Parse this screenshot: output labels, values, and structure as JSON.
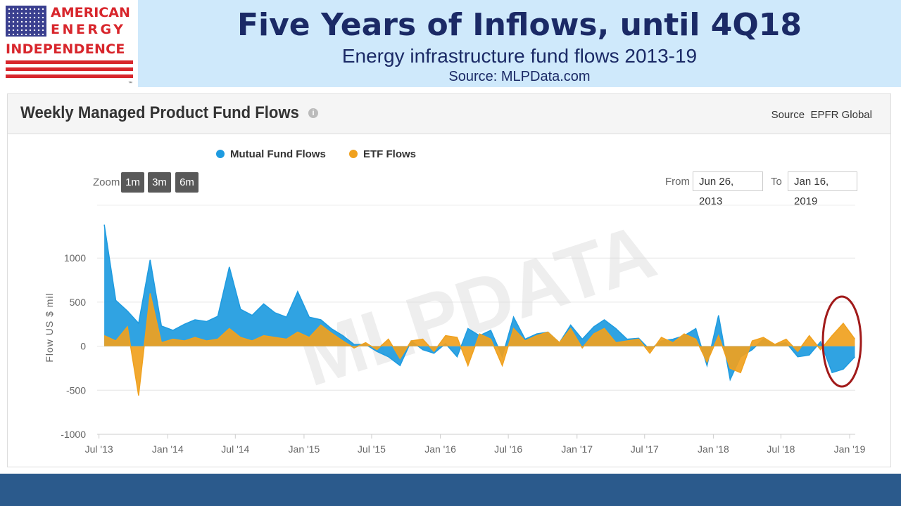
{
  "logo": {
    "line1": "AMERICAN",
    "line2": "ENERGY",
    "line3": "INDEPENDENCE",
    "tm": "™"
  },
  "slide": {
    "title": "Five Years of Inflows, until 4Q18",
    "subtitle": "Energy infrastructure fund flows 2013-19",
    "source": "Source: MLPData.com"
  },
  "panel": {
    "title": "Weekly Managed Product Fund Flows",
    "source_label": "Source",
    "source_value": "EPFR Global",
    "info_icon": "info-icon"
  },
  "controls": {
    "zoom_label": "Zoom",
    "zoom_buttons": [
      "1m",
      "3m",
      "6m"
    ],
    "from_label": "From",
    "from_value": "Jun 26, 2013",
    "to_label": "To",
    "to_value": "Jan 16, 2019"
  },
  "watermark": "MLPDATA",
  "colors": {
    "mutual": "#1e9be0",
    "etf": "#f0a11e",
    "highlight": "#a11a1a",
    "title": "#1b2a66",
    "footer": "#2b5a8c"
  },
  "chart_data": {
    "type": "area",
    "ylabel": "Flow US $ mil",
    "xlabel": "",
    "ylim": [
      -1000,
      1600
    ],
    "yticks": [
      1000,
      500,
      0,
      -500,
      -1000
    ],
    "xticks": [
      "Jul '13",
      "Jan '14",
      "Jul '14",
      "Jan '15",
      "Jul '15",
      "Jan '16",
      "Jul '16",
      "Jan '17",
      "Jul '17",
      "Jan '18",
      "Jul '18",
      "Jan '19"
    ],
    "xrange": [
      "2013-06-26",
      "2019-01-16"
    ],
    "grid": true,
    "legend": "top",
    "annotation": "circle around Q4 2018 to Jan 2019",
    "series": [
      {
        "name": "Mutual Fund Flows",
        "x": [
          "2013-07",
          "2013-08",
          "2013-09",
          "2013-10",
          "2013-11",
          "2013-12",
          "2014-01",
          "2014-02",
          "2014-03",
          "2014-04",
          "2014-05",
          "2014-06",
          "2014-07",
          "2014-08",
          "2014-09",
          "2014-10",
          "2014-11",
          "2014-12",
          "2015-01",
          "2015-02",
          "2015-03",
          "2015-04",
          "2015-05",
          "2015-06",
          "2015-07",
          "2015-08",
          "2015-09",
          "2015-10",
          "2015-11",
          "2015-12",
          "2016-01",
          "2016-02",
          "2016-03",
          "2016-04",
          "2016-05",
          "2016-06",
          "2016-07",
          "2016-08",
          "2016-09",
          "2016-10",
          "2016-11",
          "2016-12",
          "2017-01",
          "2017-02",
          "2017-03",
          "2017-04",
          "2017-05",
          "2017-06",
          "2017-07",
          "2017-08",
          "2017-09",
          "2017-10",
          "2017-11",
          "2017-12",
          "2018-01",
          "2018-02",
          "2018-03",
          "2018-04",
          "2018-05",
          "2018-06",
          "2018-07",
          "2018-08",
          "2018-09",
          "2018-10",
          "2018-11",
          "2018-12",
          "2019-01"
        ],
        "values": [
          1380,
          520,
          400,
          260,
          980,
          230,
          180,
          250,
          300,
          280,
          340,
          900,
          420,
          350,
          480,
          380,
          330,
          620,
          330,
          300,
          200,
          120,
          20,
          20,
          -60,
          -120,
          -220,
          60,
          -40,
          -80,
          30,
          -120,
          200,
          120,
          180,
          -120,
          330,
          80,
          140,
          160,
          40,
          240,
          80,
          220,
          300,
          200,
          80,
          90,
          -40,
          60,
          80,
          120,
          200,
          -220,
          350,
          -380,
          -120,
          -40,
          80,
          20,
          40,
          -120,
          -100,
          50,
          -300,
          -260,
          -120
        ]
      },
      {
        "name": "ETF Flows",
        "x": [
          "2013-07",
          "2013-08",
          "2013-09",
          "2013-10",
          "2013-11",
          "2013-12",
          "2014-01",
          "2014-02",
          "2014-03",
          "2014-04",
          "2014-05",
          "2014-06",
          "2014-07",
          "2014-08",
          "2014-09",
          "2014-10",
          "2014-11",
          "2014-12",
          "2015-01",
          "2015-02",
          "2015-03",
          "2015-04",
          "2015-05",
          "2015-06",
          "2015-07",
          "2015-08",
          "2015-09",
          "2015-10",
          "2015-11",
          "2015-12",
          "2016-01",
          "2016-02",
          "2016-03",
          "2016-04",
          "2016-05",
          "2016-06",
          "2016-07",
          "2016-08",
          "2016-09",
          "2016-10",
          "2016-11",
          "2016-12",
          "2017-01",
          "2017-02",
          "2017-03",
          "2017-04",
          "2017-05",
          "2017-06",
          "2017-07",
          "2017-08",
          "2017-09",
          "2017-10",
          "2017-11",
          "2017-12",
          "2018-01",
          "2018-02",
          "2018-03",
          "2018-04",
          "2018-05",
          "2018-06",
          "2018-07",
          "2018-08",
          "2018-09",
          "2018-10",
          "2018-11",
          "2018-12",
          "2019-01"
        ],
        "values": [
          120,
          60,
          220,
          -560,
          600,
          40,
          80,
          60,
          100,
          60,
          80,
          200,
          100,
          60,
          120,
          100,
          80,
          160,
          100,
          240,
          150,
          60,
          -20,
          40,
          -40,
          80,
          -140,
          60,
          80,
          -60,
          120,
          100,
          -220,
          140,
          80,
          -220,
          200,
          60,
          120,
          160,
          40,
          200,
          -20,
          140,
          200,
          40,
          60,
          80,
          -80,
          100,
          40,
          140,
          80,
          -180,
          120,
          -250,
          -300,
          60,
          100,
          20,
          80,
          -60,
          120,
          -40,
          120,
          260,
          80
        ]
      }
    ]
  }
}
